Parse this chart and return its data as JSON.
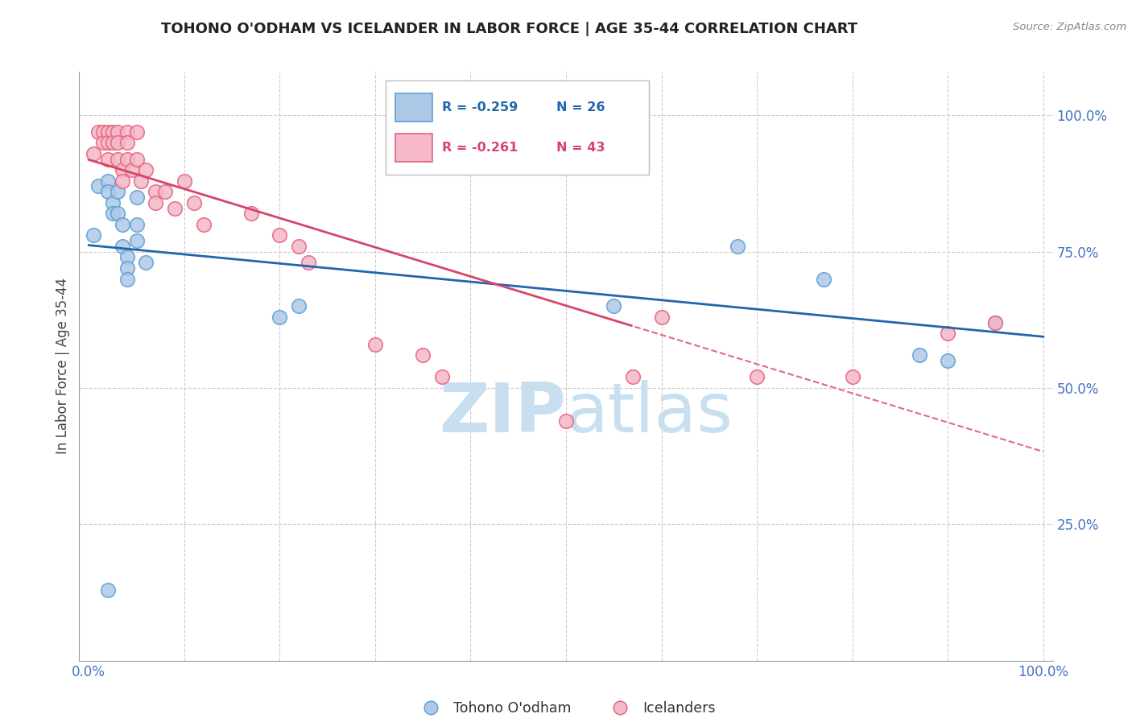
{
  "title": "TOHONO O'ODHAM VS ICELANDER IN LABOR FORCE | AGE 35-44 CORRELATION CHART",
  "source": "Source: ZipAtlas.com",
  "ylabel": "In Labor Force | Age 35-44",
  "legend_blue_label": "Tohono O'odham",
  "legend_pink_label": "Icelanders",
  "legend_r_blue": "R = -0.259",
  "legend_n_blue": "N = 26",
  "legend_r_pink": "R = -0.261",
  "legend_n_pink": "N = 43",
  "blue_scatter_x": [
    0.005,
    0.01,
    0.02,
    0.02,
    0.025,
    0.025,
    0.03,
    0.03,
    0.035,
    0.035,
    0.04,
    0.04,
    0.04,
    0.05,
    0.05,
    0.05,
    0.06,
    0.2,
    0.22,
    0.55,
    0.68,
    0.77,
    0.87,
    0.9,
    0.95,
    0.02
  ],
  "blue_scatter_y": [
    0.78,
    0.87,
    0.88,
    0.86,
    0.84,
    0.82,
    0.86,
    0.82,
    0.8,
    0.76,
    0.74,
    0.72,
    0.7,
    0.85,
    0.8,
    0.77,
    0.73,
    0.63,
    0.65,
    0.65,
    0.76,
    0.7,
    0.56,
    0.55,
    0.62,
    0.13
  ],
  "pink_scatter_x": [
    0.005,
    0.01,
    0.015,
    0.015,
    0.02,
    0.02,
    0.02,
    0.025,
    0.025,
    0.03,
    0.03,
    0.03,
    0.035,
    0.035,
    0.04,
    0.04,
    0.04,
    0.045,
    0.05,
    0.05,
    0.055,
    0.06,
    0.07,
    0.07,
    0.08,
    0.09,
    0.1,
    0.11,
    0.12,
    0.17,
    0.2,
    0.22,
    0.23,
    0.3,
    0.35,
    0.37,
    0.5,
    0.57,
    0.6,
    0.7,
    0.8,
    0.9,
    0.95
  ],
  "pink_scatter_y": [
    0.93,
    0.97,
    0.97,
    0.95,
    0.97,
    0.95,
    0.92,
    0.97,
    0.95,
    0.97,
    0.95,
    0.92,
    0.9,
    0.88,
    0.97,
    0.95,
    0.92,
    0.9,
    0.97,
    0.92,
    0.88,
    0.9,
    0.86,
    0.84,
    0.86,
    0.83,
    0.88,
    0.84,
    0.8,
    0.82,
    0.78,
    0.76,
    0.73,
    0.58,
    0.56,
    0.52,
    0.44,
    0.52,
    0.63,
    0.52,
    0.52,
    0.6,
    0.62
  ],
  "blue_color": "#aec8e8",
  "pink_color": "#f4b8c8",
  "blue_edge_color": "#5a9fd4",
  "pink_edge_color": "#e8607a",
  "blue_line_color": "#2166ac",
  "pink_line_color": "#d6456b",
  "watermark_color": "#c8dff0",
  "background_color": "#ffffff",
  "grid_color": "#cccccc",
  "tick_color": "#4472c4",
  "ylabel_color": "#444444",
  "title_color": "#222222"
}
